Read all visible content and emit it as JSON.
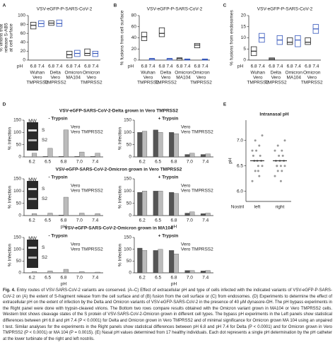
{
  "chart_data": [
    {
      "type": "box",
      "panel": "A",
      "title": "VSV-eGFP-P-SARS-CoV-2",
      "ylabel": [
        "% virions that",
        "release S-AB5",
        "at cell surface"
      ],
      "categories": [
        [
          "Wuhan",
          "Vero",
          "TMPRSS2"
        ],
        [
          "Delta",
          "Vero",
          "TMPRSS2"
        ],
        [
          "Omicron",
          "MA104"
        ],
        [
          "Omicron",
          "Vero",
          "TMPRSS2"
        ]
      ],
      "ph_label": "pH",
      "ph_ticks": [
        "6.8",
        "7.4"
      ],
      "series": [
        {
          "color": "#222222",
          "values": [
            78,
            83,
            12,
            15
          ],
          "q1": [
            70,
            78,
            5,
            10
          ],
          "q3": [
            85,
            88,
            20,
            25
          ]
        },
        {
          "color": "#3355bb",
          "values": [
            82,
            82,
            15,
            15
          ],
          "q1": [
            75,
            76,
            8,
            8
          ],
          "q3": [
            88,
            90,
            22,
            20
          ]
        }
      ],
      "ylim": [
        0,
        100
      ],
      "yticks": [
        0,
        20,
        40,
        60,
        80,
        100
      ]
    },
    {
      "type": "box",
      "panel": "B",
      "title": "VSV-eGFP-P-SARS-CoV-2",
      "ylabel": [
        "% fusions from cell surface"
      ],
      "categories": [
        [
          "Wuhan",
          "Vero",
          "TMPRSS2"
        ],
        [
          "Delta",
          "Vero",
          "TMPRSS2"
        ],
        [
          "Omicron",
          "MA104"
        ],
        [
          "Omicron",
          "Vero",
          "TMPRSS2"
        ]
      ],
      "ph_label": "pH",
      "ph_ticks": [
        "6.8",
        "7.4"
      ],
      "series": [
        {
          "color": "#222222",
          "values": [
            42,
            48,
            3,
            27
          ],
          "q1": [
            35,
            42,
            0,
            22
          ],
          "q3": [
            50,
            58,
            4,
            30
          ]
        },
        {
          "color": "#3355bb",
          "values": [
            2,
            2,
            1,
            1
          ],
          "q1": [
            0,
            0,
            0,
            0
          ],
          "q3": [
            3,
            3,
            2,
            2
          ]
        }
      ],
      "ylim": [
        0,
        80
      ],
      "yticks": [
        0,
        20,
        40,
        60,
        80
      ]
    },
    {
      "type": "box",
      "panel": "C",
      "title": "VSV-eGFP-P-SARS-CoV-2",
      "ylabel": [
        "% fusions from endosomes"
      ],
      "categories": [
        [
          "Wuhan",
          "Vero",
          "TMPRSS2"
        ],
        [
          "Delta",
          "Vero",
          "TMPRSS2"
        ],
        [
          "Omicron",
          "MA104"
        ],
        [
          "Omicron",
          "Vero",
          "TMPRSS2"
        ]
      ],
      "ph_label": "pH",
      "ph_ticks": [
        "6.8",
        "7.4"
      ],
      "series": [
        {
          "color": "#222222",
          "values": [
            4,
            0.5,
            8,
            8
          ],
          "q1": [
            2,
            0,
            7,
            7
          ],
          "q3": [
            6,
            1,
            10,
            10
          ]
        },
        {
          "color": "#3355bb",
          "values": [
            10,
            9,
            9,
            14
          ],
          "q1": [
            8,
            7,
            6,
            12
          ],
          "q3": [
            12,
            11,
            11,
            16
          ]
        }
      ],
      "ylim": [
        0,
        20
      ],
      "yticks": [
        0,
        5,
        10,
        15,
        20
      ]
    },
    {
      "type": "bar",
      "panel": "D",
      "title": "VSV-eGFP-SARS-CoV-2-Delta grown in Vero TMPRSS2",
      "subtitle": "- Trypsin",
      "blot": [
        "MW",
        "S",
        "S2"
      ],
      "ylabel": "% Infection",
      "categories": [
        "6.2",
        "6.5",
        "6.8",
        "7.0",
        "7.4"
      ],
      "series": [
        {
          "name": "Vero",
          "color": "#555555",
          "values": [
            0,
            2,
            2,
            2,
            2
          ]
        },
        {
          "name": "Vero TMPRSS2",
          "color": "#bbbbbb",
          "values": [
            15,
            35,
            110,
            20,
            15
          ]
        }
      ],
      "ylim": [
        0,
        150
      ],
      "yticks": [
        0,
        50,
        100,
        150
      ]
    },
    {
      "type": "bar",
      "subtitle": "+ Trypsin",
      "ylabel": "% Infection",
      "categories": [
        "6.2",
        "6.5",
        "6.8",
        "7.0",
        "7.4"
      ],
      "series": [
        {
          "name": "Vero",
          "color": "#555555",
          "values": [
            100,
            110,
            100,
            10,
            10
          ]
        },
        {
          "name": "Vero TMPRSS2",
          "color": "#bbbbbb",
          "values": [
            105,
            100,
            95,
            15,
            12
          ]
        }
      ],
      "ylim": [
        0,
        150
      ],
      "yticks": [
        0,
        50,
        100,
        150
      ]
    },
    {
      "type": "bar",
      "title": "VSV-eGFP-SARS-CoV-2-Omicron grown in Vero TMPRSS2",
      "subtitle": "- Trypsin",
      "blot": [
        "MW",
        "S",
        "S2"
      ],
      "ylabel": "% Infection",
      "xlabel": "pH",
      "categories": [
        "6.2",
        "6.5",
        "6.8",
        "7.0",
        "7.4"
      ],
      "series": [
        {
          "name": "Vero",
          "color": "#555555",
          "values": [
            0,
            0,
            2,
            0,
            0
          ]
        },
        {
          "name": "Vero TMPRSS2",
          "color": "#bbbbbb",
          "values": [
            8,
            10,
            75,
            10,
            8
          ]
        }
      ],
      "ylim": [
        0,
        150
      ],
      "yticks": [
        0,
        50,
        100,
        150
      ]
    },
    {
      "type": "bar",
      "subtitle": "+ Trypsin",
      "ylabel": "% Infection",
      "xlabel": "pH",
      "categories": [
        "6.2",
        "6.5",
        "6.8",
        "7.0",
        "7.4"
      ],
      "series": [
        {
          "name": "Vero",
          "color": "#555555",
          "values": [
            95,
            100,
            95,
            10,
            8
          ]
        },
        {
          "name": "Vero TMPRSS2",
          "color": "#bbbbbb",
          "values": [
            100,
            100,
            90,
            15,
            10
          ]
        }
      ],
      "ylim": [
        0,
        150
      ],
      "yticks": [
        0,
        50,
        100,
        150
      ]
    },
    {
      "type": "bar",
      "title": "VSV-eGFP-SARS-CoV-2-Omicron grown in MA104",
      "subtitle": "- Trypsin",
      "blot": [
        "MW",
        "S",
        "S2"
      ],
      "ylabel": "% Infection",
      "xlabel": "pH",
      "categories": [
        "6.2",
        "6.5",
        "6.8",
        "7.0",
        "7.4"
      ],
      "series": [
        {
          "name": "Vero",
          "color": "#555555",
          "values": [
            0,
            0,
            0,
            0,
            0
          ]
        },
        {
          "name": "Vero TMPRSS2",
          "color": "#bbbbbb",
          "values": [
            5,
            8,
            15,
            5,
            3
          ]
        }
      ],
      "ylim": [
        0,
        150
      ],
      "yticks": [
        0,
        50,
        100,
        150
      ]
    },
    {
      "type": "bar",
      "subtitle": "+ Trypsin",
      "ylabel": "% Infection",
      "xlabel": "pH",
      "categories": [
        "6.2",
        "6.5",
        "6.8",
        "7.0",
        "7.4"
      ],
      "series": [
        {
          "name": "Vero",
          "color": "#555555",
          "values": [
            105,
            95,
            95,
            10,
            8
          ]
        },
        {
          "name": "Vero TMPRSS2",
          "color": "#bbbbbb",
          "values": [
            95,
            100,
            80,
            10,
            10
          ]
        }
      ],
      "ylim": [
        0,
        150
      ],
      "yticks": [
        0,
        50,
        100,
        150
      ]
    },
    {
      "type": "strip",
      "panel": "E",
      "title": "Intranasal pH",
      "ylabel": "pH",
      "xlabel": "Nostril",
      "categories": [
        "left",
        "right"
      ],
      "color": "#999999",
      "series": [
        {
          "values": [
            6.2,
            6.3,
            6.4,
            6.5,
            6.5,
            6.6,
            6.6,
            6.6,
            6.7,
            6.7,
            6.8,
            6.8,
            6.9,
            7.0,
            7.1,
            6.4,
            6.6
          ]
        },
        {
          "values": [
            6.3,
            6.4,
            6.4,
            6.5,
            6.5,
            6.5,
            6.6,
            6.6,
            6.6,
            6.7,
            6.7,
            6.8,
            6.8,
            6.9,
            7.0,
            6.2,
            6.5
          ]
        }
      ],
      "medians": [
        6.6,
        6.6
      ],
      "ylim": [
        5.8,
        7.4
      ],
      "yticks": [
        {
          "value": 6,
          "label": "6.0"
        },
        6.5,
        {
          "value": 7,
          "label": "7.0"
        }
      ]
    }
  ],
  "caption": {
    "label": "Fig. 4.",
    "text": "Entry routes of VSV-SARS-CoV-2 variants are conserved. (A–C) Effect of extracellular pH and type of cells infected with the indicated variants of VSV-eGFP-P-SARS-CoV-2 on (A) the extent of S-fragment release from the cell surface and of (B) fusion from the cell surface or (C) from endosomes. (D) Experiments to determine the effect of extracellular pH on the extent of infection by the Delta and Omicron variants of VSV-eGFP-SARS-CoV-2 in the presence of 40 μM dynasore-OH. The pH bypass experiments in the Right panel were done with trypsin-cleaved virions. The Bottom two rows compare results obtained with the Omicron variant grown in MA104 or Vero TMPRSS2 cells. Western blot shows cleavage states of the S protein of VSV-SARS-CoV-2-Omicron grown in different cell types. The bypass pH experiments in the Left panels show statistical differences between pH 6.8 and pH 7.4 (P < 0.0001) for Delta and Omicron grown in Vero TMPRSS2 and of minimal significance for Omicron grown MA 104 using an unpaired t test. Similar analyses for the experiments in the Right panels show statistical differences between pH 6.8 and pH 7.4 for Delta (P < 0.0001) and for Omicron grown in Vero TMPRSS2 (P < 0.0001) or MA 104 (P = 0.0015). (E) Nasal pH values determined from 17 healthy individuals. Each dot represents a single pH determination by the pH catheter at the lower turbinate of the right and left nostrils."
  }
}
